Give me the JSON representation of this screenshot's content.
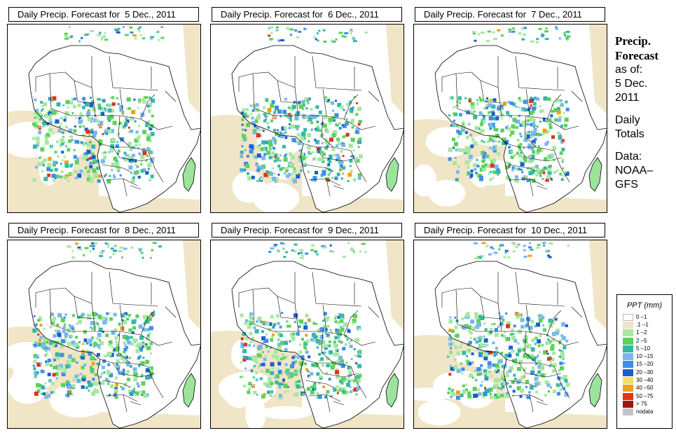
{
  "panels": [
    {
      "title": "Daily Precip. Forecast for  5 Dec., 2011"
    },
    {
      "title": "Daily Precip. Forecast for  6 Dec., 2011"
    },
    {
      "title": "Daily Precip. Forecast for  7 Dec., 2011"
    },
    {
      "title": "Daily Precip. Forecast for  8 Dec., 2011"
    },
    {
      "title": "Daily Precip. Forecast for  9 Dec., 2011"
    },
    {
      "title": "Daily Precip. Forecast for  10 Dec., 2011"
    }
  ],
  "side_info": {
    "heading_line1": "Precip.",
    "heading_line2": "Forecast",
    "asof_line1": "as of:",
    "asof_line2": "5 Dec.",
    "asof_line3": "2011",
    "totals_line1": "Daily",
    "totals_line2": "Totals",
    "data_line1": "Data:",
    "data_line2": "NOAA–",
    "data_line3": "GFS"
  },
  "legend": {
    "title": "PPT (mm)",
    "items": [
      {
        "label": "0 –1",
        "color": "#ffffff"
      },
      {
        "label": ".1 –1",
        "color": "#f0e4c4"
      },
      {
        "label": "1 –2",
        "color": "#a6e8a0"
      },
      {
        "label": "2 –5",
        "color": "#5ad25a"
      },
      {
        "label": "5 –10",
        "color": "#33b8a8"
      },
      {
        "label": "10 –15",
        "color": "#7ab6ee"
      },
      {
        "label": "15 –20",
        "color": "#3c8ee6"
      },
      {
        "label": "20 –30",
        "color": "#1a5fd0"
      },
      {
        "label": "30 –40",
        "color": "#f6dd66"
      },
      {
        "label": "40 –50",
        "color": "#f0a020"
      },
      {
        "label": "50 –75",
        "color": "#e03418"
      },
      {
        "label": "> 75",
        "color": "#a01410"
      },
      {
        "label": "nodata",
        "color": "#c4c4c4"
      }
    ]
  },
  "colors": {
    "land_trace": "#f0e4c4",
    "ocean": "#ffffff",
    "border": "#000000"
  }
}
